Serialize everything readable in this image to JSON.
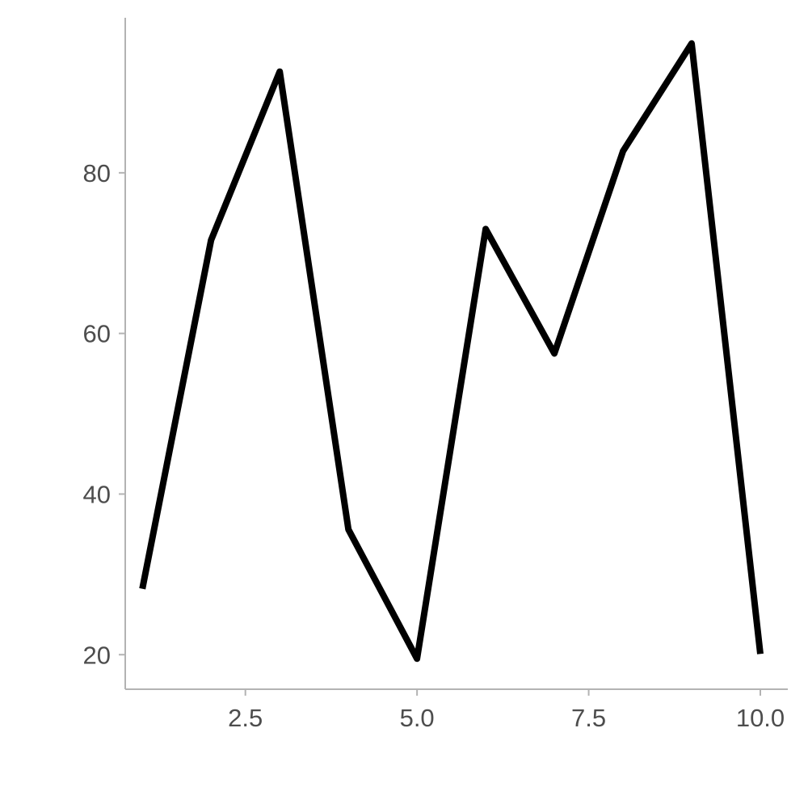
{
  "chart_data": {
    "type": "line",
    "title": "",
    "xlabel": "",
    "ylabel": "",
    "xlim": [
      0.75,
      10.4
    ],
    "ylim": [
      15.7,
      99.3
    ],
    "x_ticks": [
      2.5,
      5.0,
      7.5,
      10.0
    ],
    "x_tick_labels": [
      "2.5",
      "5.0",
      "7.5",
      "10.0"
    ],
    "y_ticks": [
      20,
      40,
      60,
      80
    ],
    "y_tick_labels": [
      "20",
      "40",
      "60",
      "80"
    ],
    "grid": false,
    "legend": "none",
    "series": [
      {
        "color": "#000000",
        "x": [
          1,
          2,
          3,
          4,
          5,
          6,
          7,
          8,
          9,
          10
        ],
        "y": [
          28.2,
          71.6,
          92.6,
          35.6,
          19.5,
          73.0,
          57.5,
          82.7,
          96.1,
          20.1
        ]
      }
    ]
  }
}
